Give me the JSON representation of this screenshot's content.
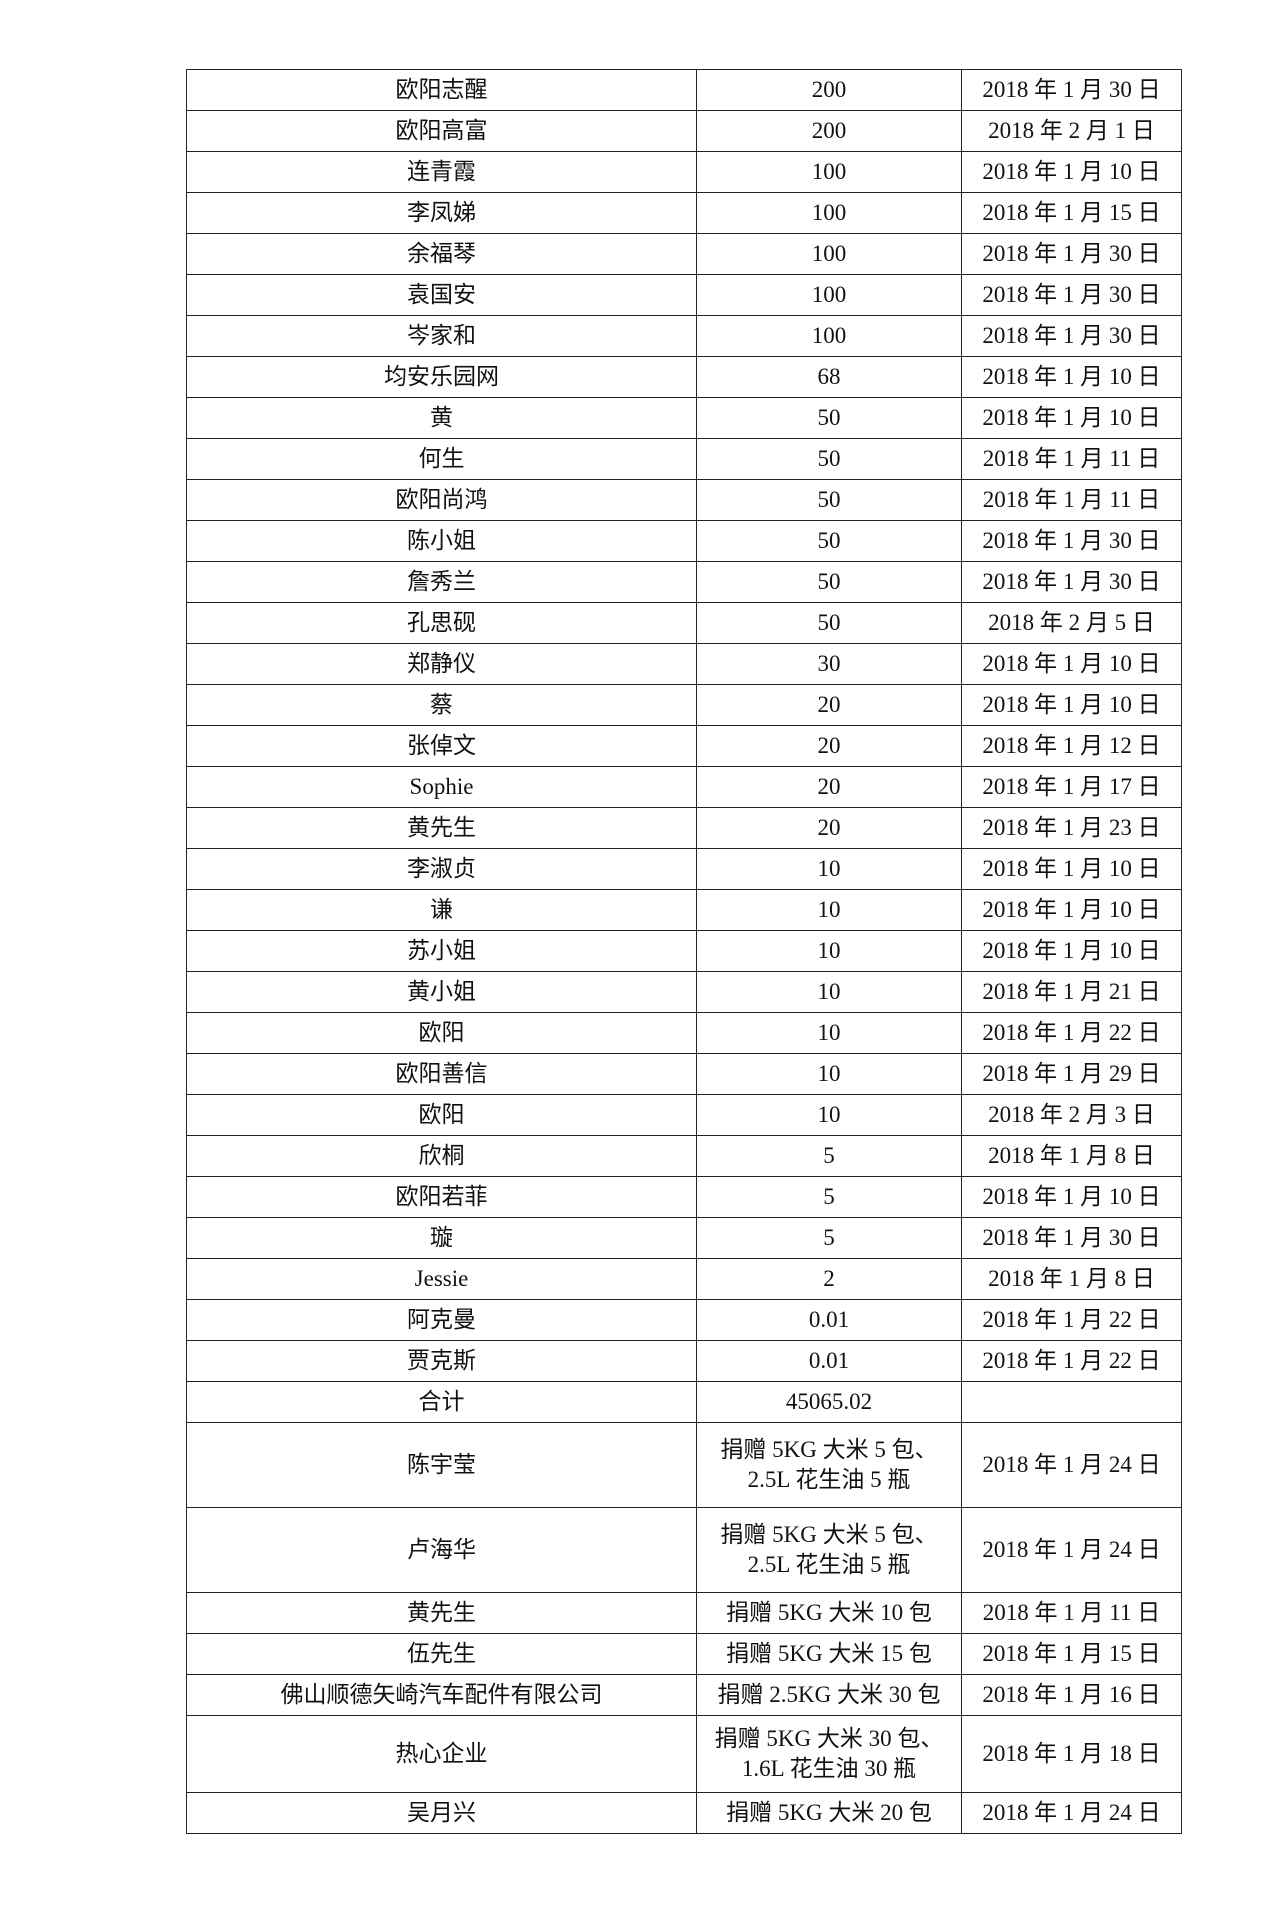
{
  "rows": [
    {
      "name": "欧阳志醒",
      "amount": "200",
      "date": "2018 年 1 月 30 日"
    },
    {
      "name": "欧阳高富",
      "amount": "200",
      "date": "2018 年 2 月 1 日"
    },
    {
      "name": "连青霞",
      "amount": "100",
      "date": "2018 年 1 月 10 日"
    },
    {
      "name": "李凤娣",
      "amount": "100",
      "date": "2018 年 1 月 15 日"
    },
    {
      "name": "余福琴",
      "amount": "100",
      "date": "2018 年 1 月 30 日"
    },
    {
      "name": "袁国安",
      "amount": "100",
      "date": "2018 年 1 月 30 日"
    },
    {
      "name": "岑家和",
      "amount": "100",
      "date": "2018 年 1 月 30 日"
    },
    {
      "name": "均安乐园网",
      "amount": "68",
      "date": "2018 年 1 月 10 日"
    },
    {
      "name": "黄",
      "amount": "50",
      "date": "2018 年 1 月 10 日"
    },
    {
      "name": "何生",
      "amount": "50",
      "date": "2018 年 1 月 11 日"
    },
    {
      "name": "欧阳尚鸿",
      "amount": "50",
      "date": "2018 年 1 月 11 日"
    },
    {
      "name": "陈小姐",
      "amount": "50",
      "date": "2018 年 1 月 30 日"
    },
    {
      "name": "詹秀兰",
      "amount": "50",
      "date": "2018 年 1 月 30 日"
    },
    {
      "name": "孔思砚",
      "amount": "50",
      "date": "2018 年 2 月 5 日"
    },
    {
      "name": "郑静仪",
      "amount": "30",
      "date": "2018 年 1 月 10 日"
    },
    {
      "name": "蔡",
      "amount": "20",
      "date": "2018 年 1 月 10 日"
    },
    {
      "name": "张倬文",
      "amount": "20",
      "date": "2018 年 1 月 12 日"
    },
    {
      "name": "Sophie",
      "amount": "20",
      "date": "2018 年 1 月 17 日"
    },
    {
      "name": "黄先生",
      "amount": "20",
      "date": "2018 年 1 月 23 日"
    },
    {
      "name": "李淑贞",
      "amount": "10",
      "date": "2018 年 1 月 10 日"
    },
    {
      "name": "谦",
      "amount": "10",
      "date": "2018 年 1 月 10 日"
    },
    {
      "name": "苏小姐",
      "amount": "10",
      "date": "2018 年 1 月 10 日"
    },
    {
      "name": "黄小姐",
      "amount": "10",
      "date": "2018 年 1 月 21 日"
    },
    {
      "name": "欧阳",
      "amount": "10",
      "date": "2018 年 1 月 22 日"
    },
    {
      "name": "欧阳善信",
      "amount": "10",
      "date": "2018 年 1 月 29 日"
    },
    {
      "name": "欧阳",
      "amount": "10",
      "date": "2018 年 2 月 3 日"
    },
    {
      "name": "欣桐",
      "amount": "5",
      "date": "2018 年 1 月 8 日"
    },
    {
      "name": "欧阳若菲",
      "amount": "5",
      "date": "2018 年 1 月 10 日"
    },
    {
      "name": "璇",
      "amount": "5",
      "date": "2018 年 1 月 30 日"
    },
    {
      "name": "Jessie",
      "amount": "2",
      "date": "2018 年 1 月 8 日"
    },
    {
      "name": "阿克曼",
      "amount": "0.01",
      "date": "2018 年 1 月 22 日"
    },
    {
      "name": "贾克斯",
      "amount": "0.01",
      "date": "2018 年 1 月 22 日"
    },
    {
      "name": "合计",
      "amount": "45065.02",
      "date": ""
    },
    {
      "name": "陈宇莹",
      "amount": "捐赠 5KG 大米 5 包、\n2.5L 花生油 5 瓶",
      "date": "2018 年 1 月 24 日",
      "double": true
    },
    {
      "name": "卢海华",
      "amount": "捐赠 5KG 大米 5 包、\n2.5L 花生油 5 瓶",
      "date": "2018 年 1 月 24 日",
      "double": true
    },
    {
      "name": "黄先生",
      "amount": "捐赠 5KG 大米 10 包",
      "date": "2018 年 1 月 11 日"
    },
    {
      "name": "伍先生",
      "amount": "捐赠 5KG 大米 15 包",
      "date": "2018 年 1 月 15 日"
    },
    {
      "name": "佛山顺德矢崎汽车配件有限公司",
      "amount": "捐赠 2.5KG 大米 30 包",
      "date": "2018 年 1 月 16 日"
    },
    {
      "name": "热心企业",
      "amount": "捐赠 5KG 大米 30 包、\n1.6L 花生油 30 瓶",
      "date": "2018 年 1 月 18 日",
      "double": true
    },
    {
      "name": "吴月兴",
      "amount": "捐赠 5KG 大米 20 包",
      "date": "2018 年 1 月 24 日"
    }
  ]
}
